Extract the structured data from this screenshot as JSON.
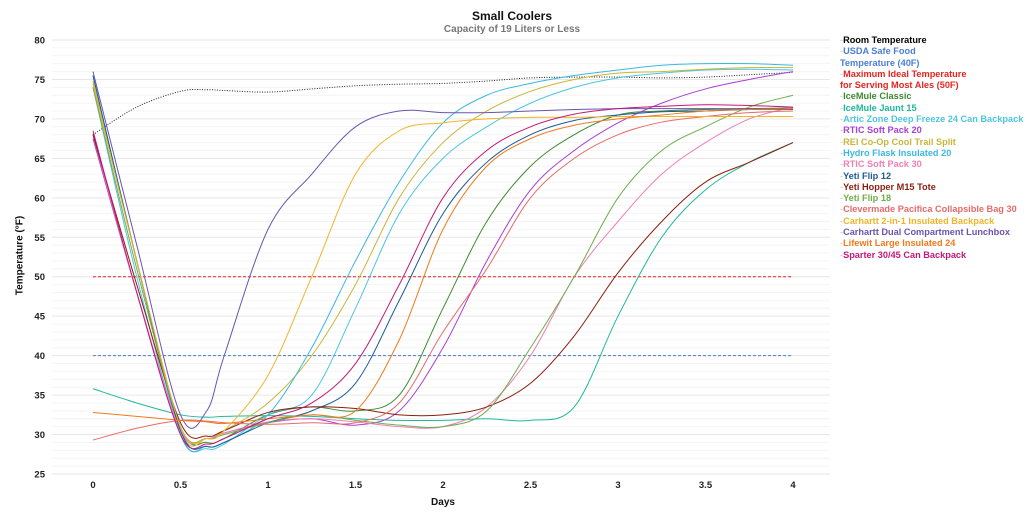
{
  "chart_data": {
    "type": "line",
    "title": "Small Coolers",
    "subtitle": "Capacity of 19 Liters or Less",
    "xlabel": "Days",
    "ylabel": "Temperature (°F)",
    "xlim": [
      0,
      4
    ],
    "ylim": [
      25,
      80
    ],
    "x_ticks": [
      "0",
      "0.5",
      "1",
      "1.5",
      "2",
      "2.5",
      "3",
      "3.5",
      "4"
    ],
    "y_ticks": [
      "25",
      "30",
      "35",
      "40",
      "45",
      "50",
      "55",
      "60",
      "65",
      "70",
      "75",
      "80"
    ],
    "grid": true,
    "legend_position": "right",
    "x": [
      0,
      0.25,
      0.5,
      0.65,
      0.75,
      1,
      1.25,
      1.5,
      1.75,
      2,
      2.25,
      2.5,
      2.75,
      3,
      3.25,
      3.5,
      3.75,
      4
    ],
    "series": [
      {
        "name": "Room Temperature",
        "color": "#222222",
        "dash": "1,1.5",
        "values": [
          68,
          71.5,
          73.5,
          73.7,
          73.6,
          73.4,
          73.8,
          74.2,
          74.4,
          74.5,
          74.8,
          75.2,
          75.3,
          75.3,
          75.2,
          75.3,
          75.6,
          75.9
        ]
      },
      {
        "name": "USDA Safe Food Temperature (40F)",
        "color": "#4a7fd4",
        "dash": "3,2",
        "values": [
          40,
          40,
          40,
          40,
          40,
          40,
          40,
          40,
          40,
          40,
          40,
          40,
          40,
          40,
          40,
          40,
          40,
          40
        ]
      },
      {
        "name": "Maximum Ideal Temperature for Serving Most Ales (50F)",
        "color": "#e8231e",
        "dash": "3,2",
        "values": [
          50,
          50,
          50,
          50,
          50,
          50,
          50,
          50,
          50,
          50,
          50,
          50,
          50,
          50,
          50,
          50,
          50,
          50
        ]
      },
      {
        "name": "IceMule Classic",
        "color": "#3c8a2e",
        "values": [
          74.5,
          52,
          31,
          29,
          29.5,
          32.5,
          33.5,
          33,
          35,
          46,
          57,
          64,
          68,
          70.5,
          71,
          71.2,
          71.3,
          71.4
        ]
      },
      {
        "name": "IceMule Jaunt 15",
        "color": "#1fb89a",
        "values": [
          35.8,
          34,
          32.5,
          32.2,
          32.3,
          32.4,
          32.3,
          32,
          31.8,
          31.8,
          32,
          31.8,
          33.5,
          45,
          55,
          61,
          64.5,
          67
        ]
      },
      {
        "name": "Artic Zone Deep Freeze 24 Can Backpack",
        "color": "#4cc6e0",
        "values": [
          74,
          50,
          30,
          28.2,
          28.8,
          32.5,
          35,
          46,
          58,
          65,
          69,
          72,
          74,
          75.2,
          75.8,
          76.2,
          76.3,
          76.2
        ]
      },
      {
        "name": "RTIC Soft Pack 20",
        "color": "#a63fd6",
        "values": [
          67.5,
          48,
          30.5,
          29.5,
          30.2,
          31.5,
          32,
          31.2,
          33,
          41,
          52,
          61,
          66,
          69.5,
          72,
          73.8,
          75,
          76
        ]
      },
      {
        "name": "REI Co-Op Cool Trail Split",
        "color": "#c9b53a",
        "values": [
          74.8,
          52,
          30.5,
          29.5,
          30.5,
          34,
          40,
          49,
          60,
          67,
          71,
          73.5,
          75,
          75.8,
          76,
          76.3,
          76.5,
          76.5
        ]
      },
      {
        "name": "Hydro Flask Insulated 20",
        "color": "#3ab8e0",
        "values": [
          75.5,
          52,
          30,
          28.5,
          29,
          32.5,
          41,
          52,
          62,
          69.5,
          73,
          74.5,
          75.5,
          76.2,
          76.8,
          77,
          77,
          76.8
        ]
      },
      {
        "name": "RTIC Soft Pack 30",
        "color": "#ee7fb5",
        "values": [
          68,
          48,
          30.5,
          29.5,
          30.2,
          31.6,
          32,
          31.6,
          31,
          31,
          33.5,
          40,
          50,
          57,
          63,
          67,
          70,
          71.5
        ]
      },
      {
        "name": "Yeti Flip 12",
        "color": "#1e5a96",
        "values": [
          75.5,
          52,
          30.5,
          28.5,
          29,
          31.5,
          33,
          36.5,
          47,
          58,
          64.5,
          68,
          69.8,
          70.5,
          70.9,
          71,
          71.2,
          71.2
        ]
      },
      {
        "name": "Yeti Hopper M15 Tote",
        "color": "#8b1e0e",
        "values": [
          68,
          49,
          31.5,
          29.8,
          30.5,
          32.8,
          33.5,
          33.3,
          32.5,
          32.5,
          33.5,
          36.5,
          42.5,
          50.5,
          57,
          62,
          64.5,
          67
        ]
      },
      {
        "name": "Yeti Flip 18",
        "color": "#6fad4a",
        "values": [
          74,
          51,
          31,
          29.5,
          30,
          31.5,
          32.5,
          31.8,
          31.2,
          31,
          33,
          41,
          50,
          60,
          66,
          69,
          71.5,
          73
        ]
      },
      {
        "name": "Clevermade Pacifica Collapsible Bag 30",
        "color": "#e86a6a",
        "values": [
          29.3,
          30.8,
          31.8,
          31.7,
          31.5,
          31.3,
          31.5,
          31.5,
          34,
          43,
          51,
          60,
          65,
          68,
          69.6,
          70.3,
          70.8,
          71
        ]
      },
      {
        "name": "Carhartt 2-in-1 Insulated Backpack",
        "color": "#f0b429",
        "values": [
          74.5,
          52,
          31,
          29.5,
          30.5,
          37.5,
          50,
          63,
          68.5,
          69.5,
          70,
          70.2,
          70.2,
          70.3,
          70.3,
          70.3,
          70.3,
          70.3
        ]
      },
      {
        "name": "Carhartt Dual Compartment Lunchbox",
        "color": "#6a55b0",
        "values": [
          76,
          54,
          32.5,
          33,
          40,
          56,
          63,
          69,
          71,
          70.8,
          70.8,
          71,
          71.2,
          71.3,
          71.3,
          71.3,
          71.3,
          71.2
        ]
      },
      {
        "name": "Lifewit Large Insulated 24",
        "color": "#f07a1e",
        "values": [
          32.8,
          32.3,
          31.8,
          31.6,
          31.4,
          32,
          32.5,
          33,
          42,
          56,
          64,
          67.5,
          69.2,
          70,
          70.5,
          71,
          71.2,
          71.3
        ]
      },
      {
        "name": "Sparter 30/45 Can Backpack",
        "color": "#c2187a",
        "values": [
          68.5,
          48,
          30,
          28.8,
          29.5,
          32,
          34,
          39,
          49,
          60,
          66,
          69,
          70.6,
          71.3,
          71.6,
          71.8,
          71.7,
          71.5
        ]
      }
    ]
  }
}
